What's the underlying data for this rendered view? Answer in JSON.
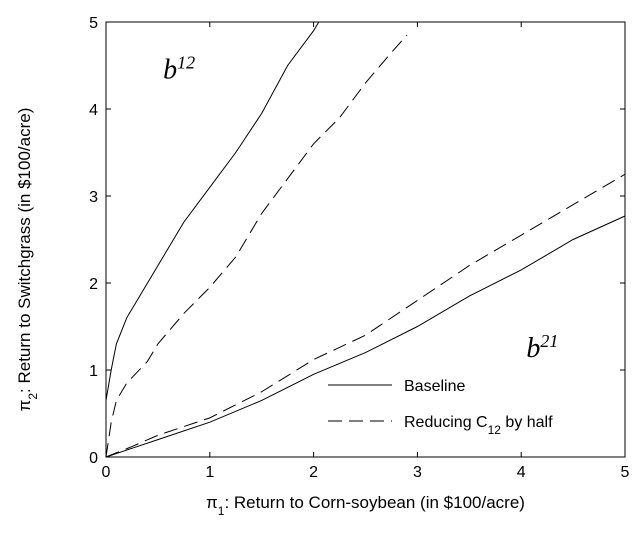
{
  "chart_data": {
    "type": "line",
    "xlabel": {
      "symbol": "π",
      "sub": "1",
      "text": ": Return to Corn-soybean (in $100/acre)"
    },
    "ylabel": {
      "symbol": "π",
      "sub": "2",
      "text": ": Return to Switchgrass (in $100/acre)"
    },
    "xlim": [
      0,
      5
    ],
    "ylim": [
      0,
      5
    ],
    "xticks": [
      0,
      1,
      2,
      3,
      4,
      5
    ],
    "yticks": [
      0,
      1,
      2,
      3,
      4,
      5
    ],
    "color": "#000000",
    "series": [
      {
        "dash": "solid",
        "x": [
          0,
          0.05,
          0.1,
          0.2,
          0.3,
          0.5,
          0.75,
          1,
          1.25,
          1.5,
          1.75,
          2,
          2.05
        ],
        "values": [
          0.65,
          1.0,
          1.3,
          1.6,
          1.8,
          2.2,
          2.7,
          3.1,
          3.5,
          3.95,
          4.5,
          4.9,
          5
        ]
      },
      {
        "dash": "dashed",
        "x": [
          0,
          0.05,
          0.1,
          0.2,
          0.4,
          0.5,
          0.75,
          1,
          1.25,
          1.5,
          1.75,
          2,
          2.25,
          2.5,
          2.75,
          2.9
        ],
        "values": [
          0,
          0.4,
          0.65,
          0.85,
          1.1,
          1.3,
          1.65,
          1.95,
          2.3,
          2.8,
          3.2,
          3.6,
          3.9,
          4.3,
          4.65,
          4.85
        ]
      },
      {
        "dash": "dashed",
        "x": [
          0,
          0.25,
          0.5,
          1,
          1.5,
          2,
          2.5,
          3,
          3.5,
          4,
          4.5,
          5
        ],
        "values": [
          0,
          0.12,
          0.25,
          0.45,
          0.75,
          1.12,
          1.4,
          1.8,
          2.2,
          2.55,
          2.9,
          3.25
        ]
      },
      {
        "dash": "solid",
        "x": [
          0,
          0.25,
          0.5,
          1,
          1.5,
          2,
          2.5,
          3,
          3.5,
          4,
          4.5,
          5
        ],
        "values": [
          0,
          0.1,
          0.2,
          0.4,
          0.65,
          0.95,
          1.2,
          1.5,
          1.85,
          2.15,
          2.5,
          2.77
        ]
      }
    ],
    "legend": [
      {
        "dash": "solid",
        "label": {
          "text": "Baseline"
        }
      },
      {
        "dash": "dashed",
        "label": {
          "text": "Reducing C",
          "sub": "12",
          "after": " by half"
        }
      }
    ],
    "annotations": [
      {
        "text": "b",
        "sup": "12",
        "x": 0.55,
        "y": 4.35
      },
      {
        "text": "b",
        "sup": "21",
        "x": 4.05,
        "y": 1.15
      }
    ]
  }
}
